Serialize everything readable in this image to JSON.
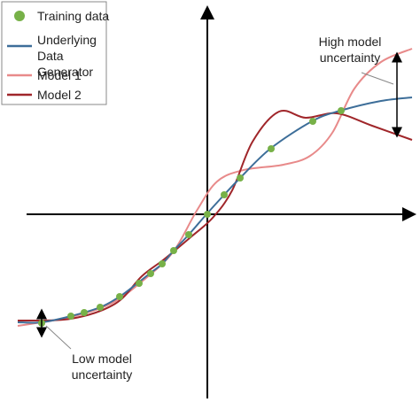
{
  "legend": {
    "items": [
      "Training data",
      "Underlying Data Generator",
      "Model 1",
      "Model 2"
    ]
  },
  "annotations": {
    "high": "High model uncertainty",
    "low": "Low model uncertainty"
  }
}
